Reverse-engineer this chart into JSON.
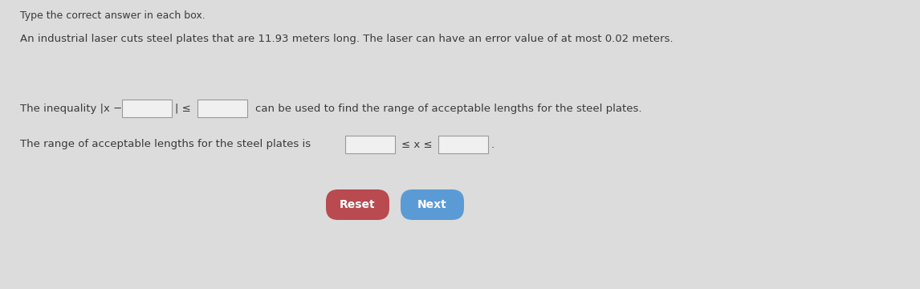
{
  "bg_color": "#dcdcdc",
  "title_text": "Type the correct answer in each box.",
  "body_text": "An industrial laser cuts steel plates that are 11.93 meters long. The laser can have an error value of at most 0.02 meters.",
  "line1_prefix": "The inequality |x −",
  "line1_mid": "| ≤",
  "line1_suffix": "can be used to find the range of acceptable lengths for the steel plates.",
  "line2_prefix": "The range of acceptable lengths for the steel plates is",
  "line2_mid": "≤ x ≤",
  "line2_suffix": ".",
  "reset_label": "Reset",
  "next_label": "Next",
  "reset_color": "#b84a50",
  "next_color": "#5b9bd5",
  "text_color": "#3a3a3a",
  "box_color": "#f0f0f0",
  "box_edge_color": "#999999",
  "font_size_title": 9.0,
  "font_size_body": 9.5,
  "font_size_eq": 9.5,
  "font_size_btn": 10.0,
  "fig_w": 11.46,
  "fig_h": 3.6,
  "dpi": 100
}
